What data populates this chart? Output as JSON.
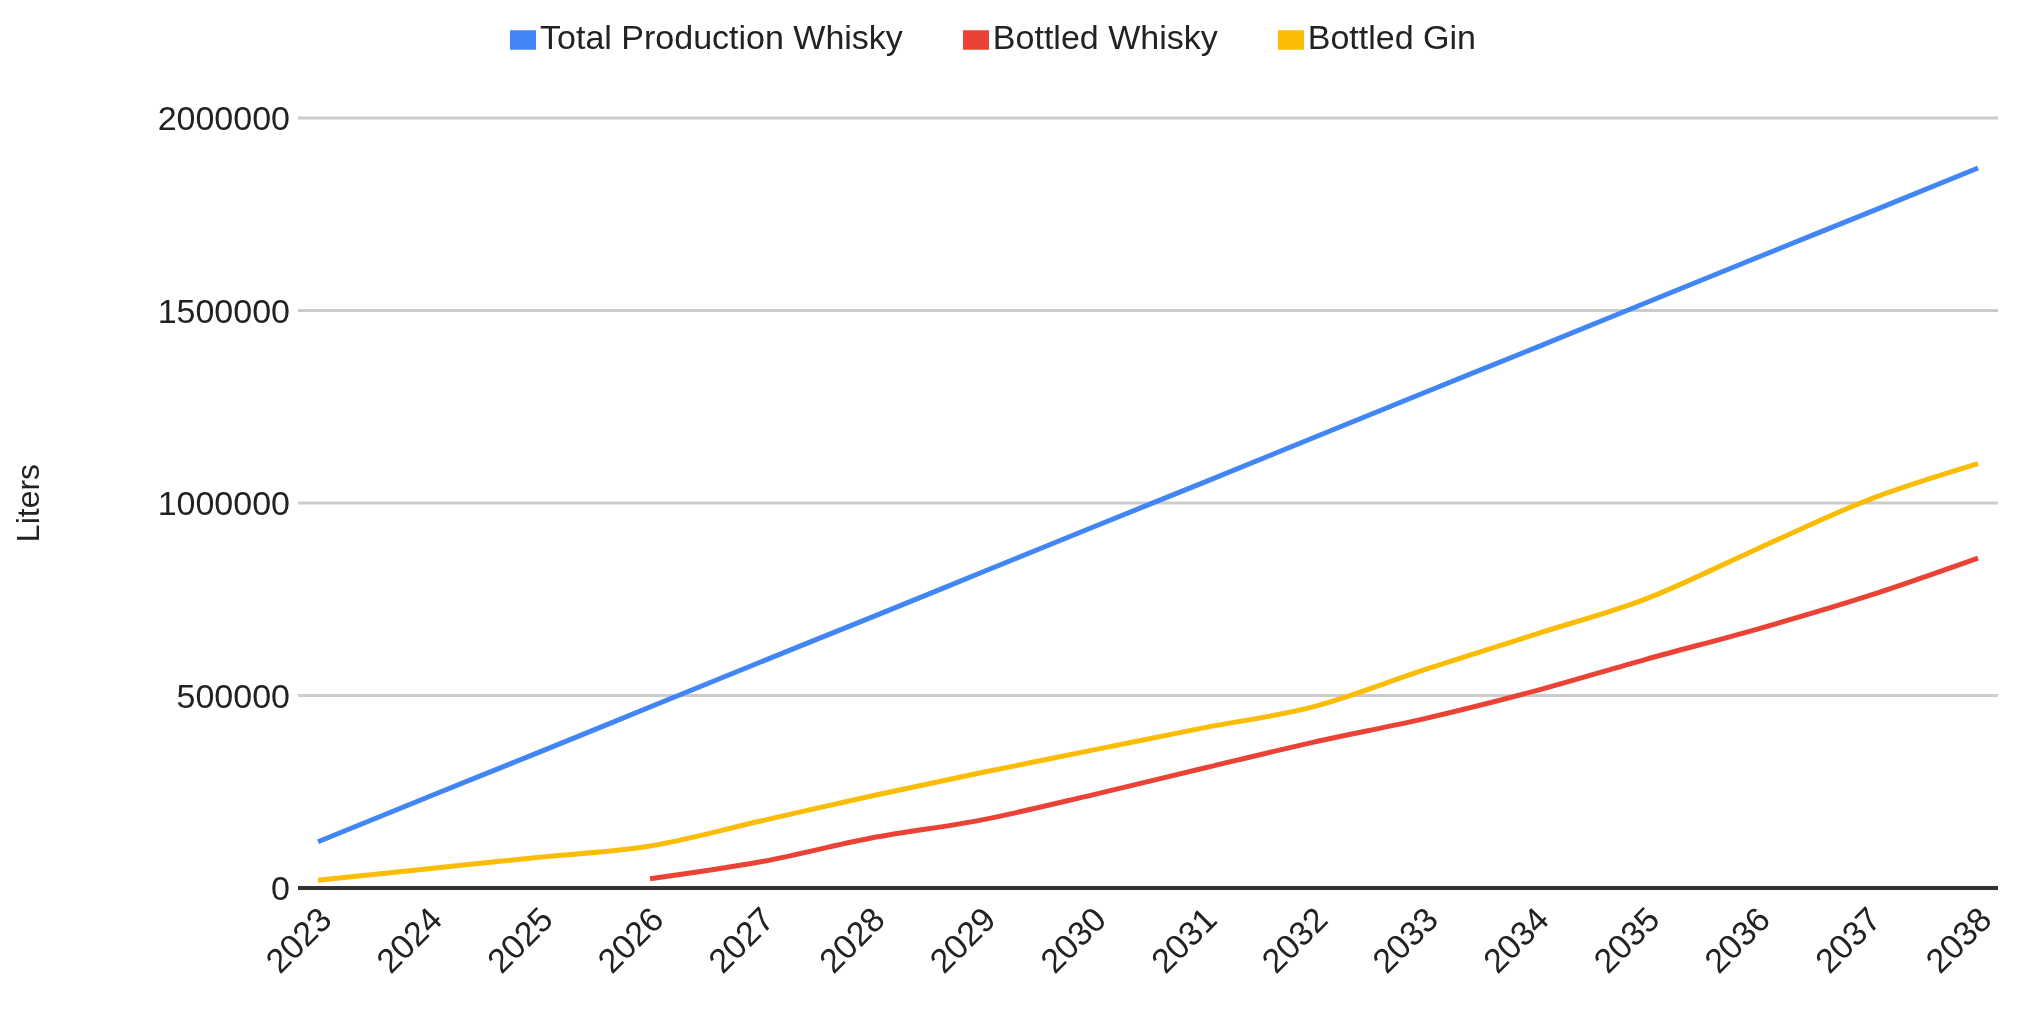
{
  "chart_data": {
    "type": "line",
    "ylabel": "Liters",
    "categories": [
      "2023",
      "2024",
      "2025",
      "2026",
      "2027",
      "2028",
      "2029",
      "2030",
      "2031",
      "2032",
      "2033",
      "2034",
      "2035",
      "2036",
      "2037",
      "2038"
    ],
    "series": [
      {
        "name": "Total Production Whisky",
        "color": "#4285f4",
        "values": [
          120000,
          237000,
          353000,
          470000,
          587000,
          703000,
          820000,
          937000,
          1053000,
          1170000,
          1287000,
          1403000,
          1520000,
          1637000,
          1753000,
          1870000
        ]
      },
      {
        "name": "Bottled Whisky",
        "color": "#ea4335",
        "values": [
          null,
          null,
          null,
          24000,
          68000,
          130000,
          177000,
          242000,
          311000,
          379000,
          440000,
          512000,
          594000,
          672000,
          758000,
          857000
        ]
      },
      {
        "name": "Bottled Gin",
        "color": "#fbbc04",
        "values": [
          20000,
          50000,
          80000,
          109000,
          174000,
          239000,
          300000,
          358000,
          416000,
          471000,
          567000,
          659000,
          751000,
          880000,
          1007000,
          1102000
        ]
      }
    ],
    "ylim": [
      0,
      2000000
    ],
    "yticks": [
      0,
      500000,
      1000000,
      1500000,
      2000000
    ],
    "grid": "y",
    "legend": "top",
    "marker": "none",
    "line_style": "solid"
  }
}
